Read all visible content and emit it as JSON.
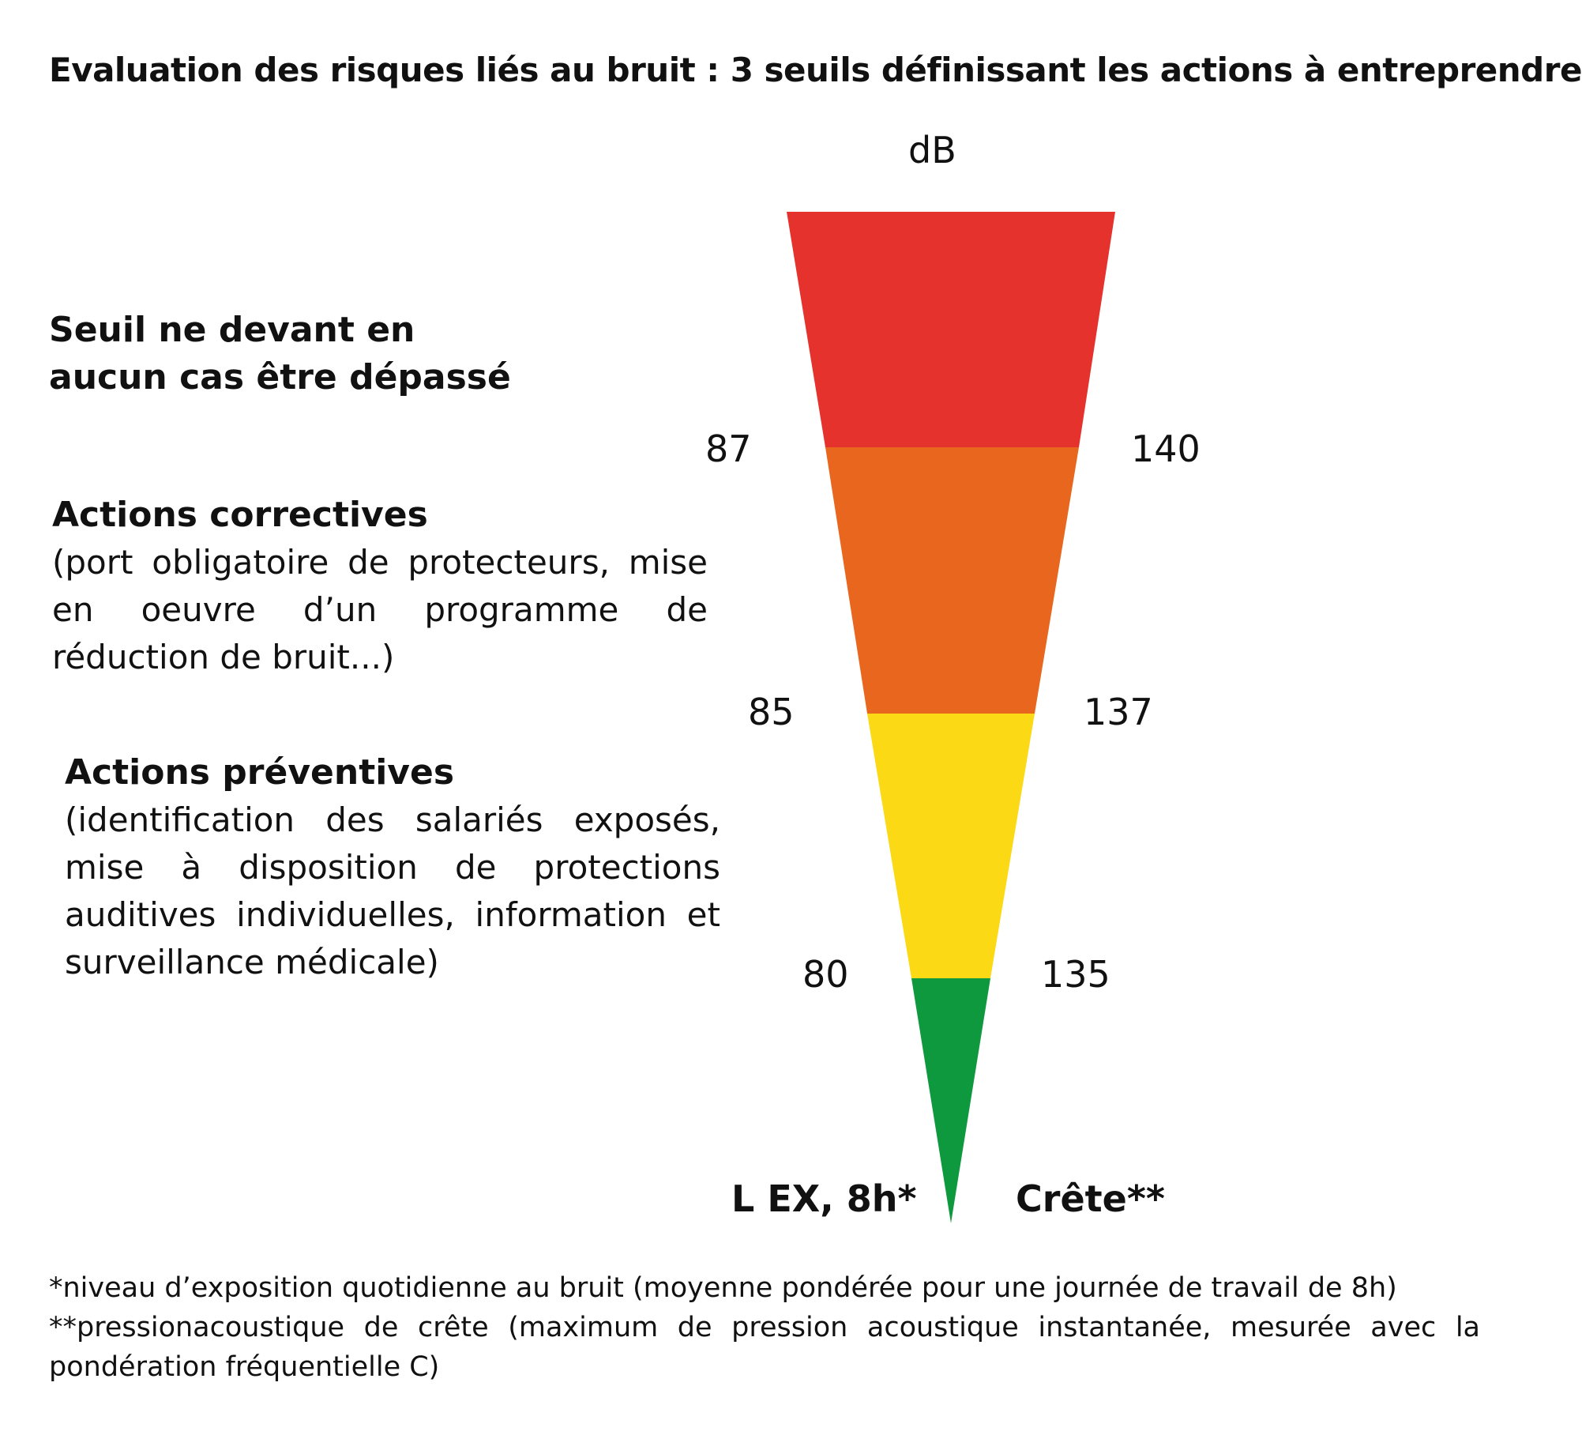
{
  "title": "Evaluation des risques liés au bruit : 3 seuils définissant les actions à entreprendre",
  "unit": "dB",
  "zones": [
    {
      "heading": "Seuil ne devant en aucun cas être dépassé",
      "description": "",
      "color": "#e5322c",
      "level": "top"
    },
    {
      "heading": "Actions correctives",
      "description": "(port obligatoire de protecteurs, mise en oeuvre d’un programme de réduction de bruit...)",
      "color": "#e9661f"
    },
    {
      "heading": "Actions préventives",
      "description": "(identification des salariés exposés, mise à disposition de protections auditives individuelles, information et surveillance médicale)",
      "color": "#fbd914"
    },
    {
      "heading": "",
      "description": "",
      "color": "#0f993f"
    }
  ],
  "thresholds": [
    {
      "lex": "87",
      "crete": "140"
    },
    {
      "lex": "85",
      "crete": "137"
    },
    {
      "lex": "80",
      "crete": "135"
    }
  ],
  "axis": {
    "left": "L EX, 8h*",
    "right": "Crête**"
  },
  "footnotes": [
    "*niveau d’exposition quotidienne au bruit (moyenne pondérée pour une journée de travail de 8h)",
    "**pressionacoustique de crête (maximum de pression acoustique instantanée, mesurée avec la pondération fréquentielle C)"
  ]
}
